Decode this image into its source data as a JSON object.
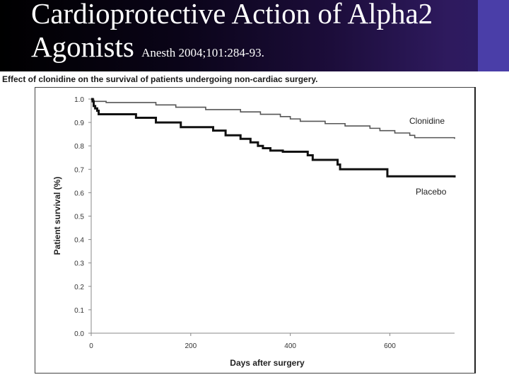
{
  "slide": {
    "title_line1": "Cardioprotective Action of Alpha2",
    "title_line2": "Agonists",
    "citation": "Anesth 2004;101:284-93.",
    "caption": "Effect of clonidine on the survival of patients undergoing non-cardiac surgery."
  },
  "colors": {
    "banner_dark": "#000000",
    "banner_purple": "#2e1a5e",
    "accent_block": "#4a3ea8",
    "clonidine_line": "#555555",
    "placebo_line": "#111111"
  },
  "chart_data": {
    "type": "line",
    "title": "Effect of clonidine on the survival of patients undergoing non-cardiac surgery.",
    "xlabel": "Days after surgery",
    "ylabel": "Patient survival (%)",
    "xlim": [
      0,
      730
    ],
    "ylim": [
      0,
      1.0
    ],
    "xticks": [
      0,
      200,
      400,
      600
    ],
    "yticks": [
      "0.0",
      "0.1",
      "0.2",
      "0.3",
      "0.4",
      "0.5",
      "0.6",
      "0.7",
      "0.8",
      "0.9",
      "1.0"
    ],
    "grid": false,
    "series": [
      {
        "name": "Clonidine",
        "step": true,
        "x": [
          0,
          5,
          30,
          90,
          130,
          170,
          230,
          300,
          340,
          380,
          400,
          420,
          470,
          510,
          560,
          580,
          610,
          640,
          650,
          730
        ],
        "y": [
          1.0,
          0.99,
          0.985,
          0.985,
          0.975,
          0.965,
          0.955,
          0.945,
          0.935,
          0.925,
          0.915,
          0.905,
          0.895,
          0.885,
          0.875,
          0.865,
          0.855,
          0.845,
          0.835,
          0.83
        ]
      },
      {
        "name": "Placebo",
        "step": true,
        "x": [
          0,
          3,
          5,
          8,
          12,
          15,
          90,
          130,
          180,
          245,
          270,
          300,
          320,
          335,
          345,
          360,
          385,
          435,
          445,
          495,
          500,
          595,
          730
        ],
        "y": [
          1.0,
          0.99,
          0.97,
          0.96,
          0.95,
          0.935,
          0.92,
          0.9,
          0.88,
          0.865,
          0.845,
          0.83,
          0.815,
          0.8,
          0.79,
          0.78,
          0.775,
          0.76,
          0.74,
          0.72,
          0.7,
          0.67,
          0.665
        ]
      }
    ]
  }
}
